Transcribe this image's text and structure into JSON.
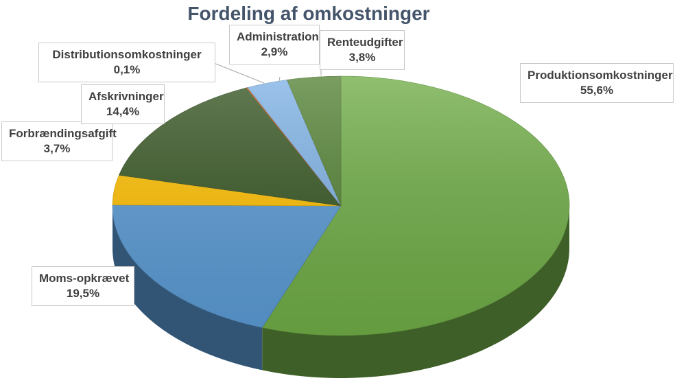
{
  "chart_data": {
    "type": "pie",
    "title": "Fordeling af omkostninger",
    "slices": [
      {
        "label": "Produktionsomkostninger",
        "value_text": "55,6%",
        "value": 55.6,
        "color": "#70ad47"
      },
      {
        "label": "Moms-opkrævet",
        "value_text": "19,5%",
        "value": 19.5,
        "color": "#5b9bd5"
      },
      {
        "label": "Forbrændingsafgift",
        "value_text": "3,7%",
        "value": 3.7,
        "color": "#ffc000"
      },
      {
        "label": "Afskrivninger",
        "value_text": "14,4%",
        "value": 14.4,
        "color": "#375623"
      },
      {
        "label": "Distributionsomkostninger",
        "value_text": "0,1%",
        "value": 0.1,
        "color": "#c55a11"
      },
      {
        "label": "Administration",
        "value_text": "2,9%",
        "value": 2.9,
        "color": "#7fb2e5"
      },
      {
        "label": "Renteudgifter",
        "value_text": "3,8%",
        "value": 3.8,
        "color": "#548235"
      }
    ]
  }
}
